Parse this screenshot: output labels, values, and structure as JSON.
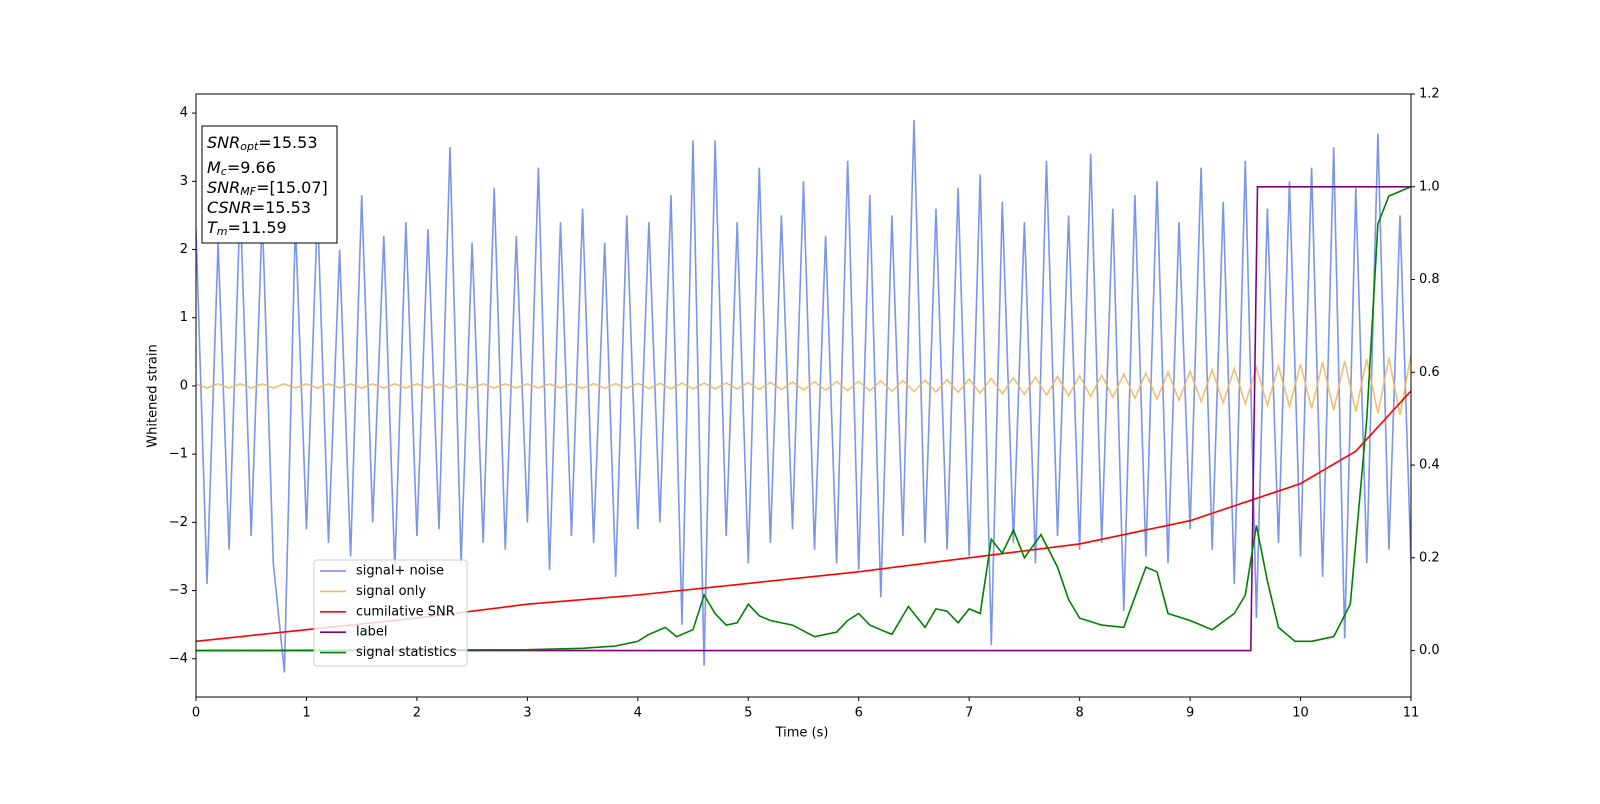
{
  "chart_data": {
    "type": "line",
    "xlabel": "Time (s)",
    "ylabel": "Whitened strain",
    "xlim": [
      0,
      11
    ],
    "ylim": [
      -4.56,
      4.28
    ],
    "y2lim": [
      -0.1,
      1.2
    ],
    "xticks": [
      0,
      1,
      2,
      3,
      4,
      5,
      6,
      7,
      8,
      9,
      10,
      11
    ],
    "yticks": [
      {
        "value": -4,
        "label": "−4"
      },
      {
        "value": -3,
        "label": "−3"
      },
      {
        "value": -2,
        "label": "−2"
      },
      {
        "value": -1,
        "label": "−1"
      },
      0,
      1,
      2,
      3,
      4
    ],
    "y2ticks": [
      {
        "value": 0,
        "label": "0.0"
      },
      {
        "value": 0.2,
        "label": "0.2"
      },
      {
        "value": 0.4,
        "label": "0.4"
      },
      {
        "value": 0.6,
        "label": "0.6"
      },
      {
        "value": 0.8,
        "label": "0.8"
      },
      {
        "value": 1,
        "label": "1.0"
      },
      {
        "value": 1.2,
        "label": "1.2"
      }
    ],
    "legend": "lower left",
    "annotations": [
      {
        "text": "SNR",
        "sub": "opt",
        "rest": "=15.53"
      },
      {
        "text": "M",
        "sub": "c",
        "rest": "=9.66"
      },
      {
        "text": "SNR",
        "sub": "MF",
        "rest": "=[15.07]"
      },
      {
        "text": "CSNR",
        "rest": "=15.53"
      },
      {
        "text": "T",
        "sub": "m",
        "rest": "=11.59"
      }
    ],
    "series": [
      {
        "name": "signal+ noise",
        "color": "#6d8ae6",
        "x": [
          0,
          0.1,
          0.2,
          0.3,
          0.4,
          0.5,
          0.6,
          0.7,
          0.8,
          0.9,
          1,
          1.1,
          1.2,
          1.3,
          1.4,
          1.5,
          1.6,
          1.7,
          1.8,
          1.9,
          2,
          2.1,
          2.2,
          2.3,
          2.4,
          2.5,
          2.6,
          2.7,
          2.8,
          2.9,
          3,
          3.1,
          3.2,
          3.3,
          3.4,
          3.5,
          3.6,
          3.7,
          3.8,
          3.9,
          4,
          4.1,
          4.2,
          4.3,
          4.4,
          4.5,
          4.6,
          4.7,
          4.8,
          4.9,
          5,
          5.1,
          5.2,
          5.3,
          5.4,
          5.5,
          5.6,
          5.7,
          5.8,
          5.9,
          6,
          6.1,
          6.2,
          6.3,
          6.4,
          6.5,
          6.6,
          6.7,
          6.8,
          6.9,
          7,
          7.1,
          7.2,
          7.3,
          7.4,
          7.5,
          7.6,
          7.7,
          7.8,
          7.9,
          8,
          8.1,
          8.2,
          8.3,
          8.4,
          8.5,
          8.6,
          8.7,
          8.8,
          8.9,
          9,
          9.1,
          9.2,
          9.3,
          9.4,
          9.5,
          9.6,
          9.7,
          9.8,
          9.9,
          10,
          10.1,
          10.2,
          10.3,
          10.4,
          10.5,
          10.6,
          10.7,
          10.8,
          10.9,
          11
        ],
        "values": [
          2.3,
          -2.9,
          2.1,
          -2.4,
          2.7,
          -2.2,
          2.5,
          -2.6,
          -4.2,
          2.4,
          -2.1,
          2.6,
          -2.3,
          2.0,
          -2.5,
          2.8,
          -2.0,
          2.2,
          -2.7,
          2.4,
          -2.2,
          2.3,
          -2.1,
          3.5,
          -2.6,
          2.1,
          -2.3,
          2.9,
          -2.4,
          2.2,
          -2.0,
          3.2,
          -2.7,
          2.4,
          -2.2,
          2.6,
          -2.3,
          2.1,
          -2.8,
          2.5,
          -2.1,
          2.4,
          -2.0,
          2.8,
          -3.5,
          3.6,
          -4.1,
          3.6,
          -2.2,
          2.4,
          -2.6,
          3.2,
          -2.3,
          2.5,
          -2.1,
          3.0,
          -2.4,
          2.2,
          -2.6,
          3.3,
          -2.7,
          2.8,
          -3.1,
          2.5,
          -2.2,
          3.9,
          -2.3,
          2.6,
          -2.4,
          2.9,
          -2.5,
          3.1,
          -3.8,
          2.7,
          -2.3,
          2.4,
          -2.6,
          3.3,
          -2.2,
          2.5,
          -2.4,
          3.4,
          -2.3,
          2.6,
          -3.3,
          2.8,
          -2.5,
          3.0,
          -2.6,
          2.4,
          -2.1,
          3.2,
          -2.4,
          2.7,
          -2.9,
          3.3,
          -3.4,
          2.6,
          -2.3,
          3.0,
          -2.5,
          3.2,
          -2.8,
          3.5,
          -3.7,
          2.9,
          -2.6,
          3.7,
          -2.4,
          2.5,
          -2.6
        ]
      },
      {
        "name": "signal only",
        "color": "#f0b860",
        "x": [
          0,
          0.1,
          0.2,
          0.3,
          0.4,
          0.5,
          0.6,
          0.7,
          0.8,
          0.9,
          1,
          1.1,
          1.2,
          1.3,
          1.4,
          1.5,
          1.6,
          1.7,
          1.8,
          1.9,
          2,
          2.1,
          2.2,
          2.3,
          2.4,
          2.5,
          2.6,
          2.7,
          2.8,
          2.9,
          3,
          3.1,
          3.2,
          3.3,
          3.4,
          3.5,
          3.6,
          3.7,
          3.8,
          3.9,
          4,
          4.1,
          4.2,
          4.3,
          4.4,
          4.5,
          4.6,
          4.7,
          4.8,
          4.9,
          5,
          5.1,
          5.2,
          5.3,
          5.4,
          5.5,
          5.6,
          5.7,
          5.8,
          5.9,
          6,
          6.1,
          6.2,
          6.3,
          6.4,
          6.5,
          6.6,
          6.7,
          6.8,
          6.9,
          7,
          7.1,
          7.2,
          7.3,
          7.4,
          7.5,
          7.6,
          7.7,
          7.8,
          7.9,
          8,
          8.1,
          8.2,
          8.3,
          8.4,
          8.5,
          8.6,
          8.7,
          8.8,
          8.9,
          9,
          9.1,
          9.2,
          9.3,
          9.4,
          9.5,
          9.6,
          9.7,
          9.8,
          9.9,
          10,
          10.1,
          10.2,
          10.3,
          10.4,
          10.5,
          10.6,
          10.7,
          10.8,
          10.9,
          11
        ],
        "values": [
          0.03,
          -0.03,
          0.03,
          -0.03,
          0.03,
          -0.03,
          0.03,
          -0.03,
          0.03,
          -0.03,
          0.03,
          -0.03,
          0.03,
          -0.03,
          0.03,
          -0.03,
          0.03,
          -0.03,
          0.03,
          -0.03,
          0.03,
          -0.03,
          0.03,
          -0.03,
          0.03,
          -0.03,
          0.03,
          -0.03,
          0.03,
          -0.03,
          0.03,
          -0.03,
          0.03,
          -0.03,
          0.03,
          -0.035,
          0.035,
          -0.035,
          0.035,
          -0.035,
          0.037,
          -0.038,
          0.039,
          -0.04,
          0.041,
          -0.042,
          0.043,
          -0.044,
          0.045,
          -0.046,
          0.048,
          -0.05,
          0.052,
          -0.054,
          0.056,
          -0.058,
          0.06,
          -0.062,
          0.064,
          -0.066,
          0.067,
          -0.07,
          0.073,
          -0.076,
          0.079,
          -0.082,
          0.085,
          -0.088,
          0.091,
          -0.095,
          0.099,
          -0.104,
          0.109,
          -0.114,
          0.119,
          -0.124,
          0.129,
          -0.134,
          0.139,
          -0.144,
          0.149,
          -0.155,
          0.161,
          -0.167,
          0.173,
          -0.18,
          0.187,
          -0.194,
          0.201,
          -0.209,
          0.218,
          -0.227,
          0.236,
          -0.245,
          0.254,
          -0.263,
          0.272,
          -0.281,
          0.29,
          -0.3,
          0.317,
          -0.33,
          0.342,
          -0.354,
          0.366,
          -0.378,
          0.39,
          -0.402,
          0.414,
          -0.426,
          0.45
        ]
      },
      {
        "name": "cumilative SNR",
        "color": "#ff0000",
        "axis": "y2",
        "x": [
          0,
          1,
          2,
          3,
          4,
          5,
          6,
          7,
          8,
          9,
          10,
          10.5,
          11
        ],
        "values": [
          0.02,
          0.045,
          0.07,
          0.1,
          0.12,
          0.145,
          0.17,
          0.2,
          0.23,
          0.28,
          0.36,
          0.43,
          0.56
        ]
      },
      {
        "name": "label",
        "color": "#800080",
        "axis": "y2",
        "x": [
          0,
          9.55,
          9.61,
          11
        ],
        "values": [
          0,
          0,
          1,
          1
        ]
      },
      {
        "name": "signal statistics",
        "color": "#008000",
        "axis": "y2",
        "x": [
          0,
          3,
          3.5,
          3.8,
          4.0,
          4.1,
          4.25,
          4.35,
          4.5,
          4.6,
          4.7,
          4.8,
          4.9,
          5.0,
          5.1,
          5.2,
          5.4,
          5.6,
          5.8,
          5.9,
          6.0,
          6.1,
          6.3,
          6.45,
          6.6,
          6.7,
          6.8,
          6.9,
          7.0,
          7.1,
          7.2,
          7.3,
          7.4,
          7.5,
          7.65,
          7.8,
          7.9,
          8.0,
          8.2,
          8.4,
          8.6,
          8.7,
          8.8,
          9.0,
          9.2,
          9.4,
          9.5,
          9.6,
          9.7,
          9.8,
          9.95,
          10.1,
          10.3,
          10.45,
          10.6,
          10.7,
          10.8,
          11
        ],
        "values": [
          0,
          0.002,
          0.005,
          0.01,
          0.02,
          0.035,
          0.05,
          0.03,
          0.045,
          0.12,
          0.08,
          0.055,
          0.06,
          0.1,
          0.075,
          0.065,
          0.055,
          0.03,
          0.04,
          0.065,
          0.08,
          0.055,
          0.035,
          0.095,
          0.05,
          0.09,
          0.085,
          0.06,
          0.09,
          0.08,
          0.24,
          0.21,
          0.26,
          0.2,
          0.25,
          0.18,
          0.11,
          0.07,
          0.055,
          0.05,
          0.18,
          0.17,
          0.08,
          0.065,
          0.045,
          0.08,
          0.12,
          0.27,
          0.15,
          0.05,
          0.02,
          0.02,
          0.03,
          0.1,
          0.5,
          0.92,
          0.98,
          1.0
        ]
      }
    ]
  }
}
